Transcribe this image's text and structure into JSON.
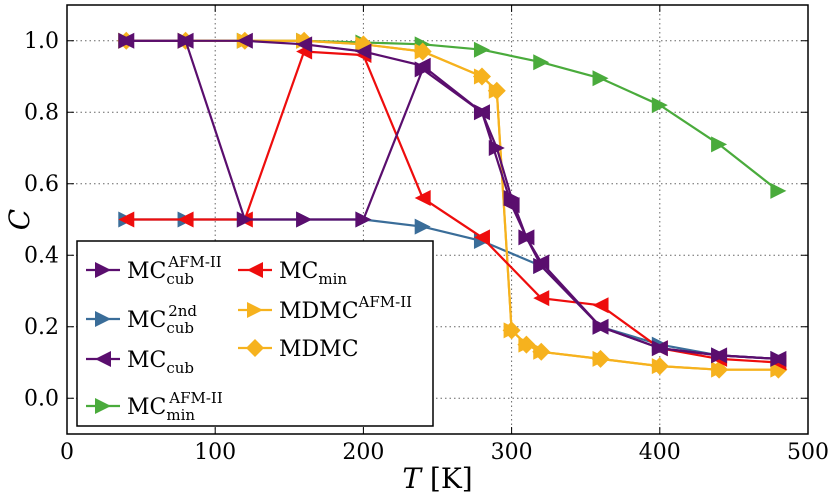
{
  "chart_data": {
    "type": "line",
    "title": "",
    "xlabel": "T [K]",
    "xlabel_var": "T",
    "xlabel_unit": "[K]",
    "ylabel": "C",
    "xlim": [
      0,
      500
    ],
    "ylim": [
      -0.1,
      1.1
    ],
    "xticks": [
      0,
      100,
      200,
      300,
      400,
      500
    ],
    "yticks": [
      0.0,
      0.2,
      0.4,
      0.6,
      0.8,
      1.0
    ],
    "xtick_labels": [
      "0",
      "100",
      "200",
      "300",
      "400",
      "500"
    ],
    "ytick_labels": [
      "0.0",
      "0.2",
      "0.4",
      "0.6",
      "0.8",
      "1.0"
    ],
    "grid": true,
    "legend_position": "bottom-left",
    "series": [
      {
        "name": "MC_cub^AFM-II",
        "base": "MC",
        "sub": "cub",
        "sup": "AFM-II",
        "color": "#5a0e6e",
        "marker": "triangle-right",
        "x": [
          40,
          80,
          120,
          160,
          200,
          240,
          280,
          290,
          300,
          310,
          320,
          360,
          400,
          440,
          480
        ],
        "y": [
          1.0,
          1.0,
          0.5,
          0.5,
          0.5,
          0.92,
          0.8,
          0.7,
          0.56,
          0.45,
          0.37,
          0.2,
          0.14,
          0.12,
          0.11
        ]
      },
      {
        "name": "MC_cub^2nd",
        "base": "MC",
        "sub": "cub",
        "sup": "2nd",
        "color": "#3a6d99",
        "marker": "triangle-right",
        "x": [
          40,
          80,
          120,
          160,
          200,
          240,
          280,
          320,
          360,
          400,
          440,
          480
        ],
        "y": [
          0.5,
          0.5,
          0.5,
          0.5,
          0.5,
          0.48,
          0.44,
          0.37,
          0.2,
          0.15,
          0.12,
          0.11
        ]
      },
      {
        "name": "MC_cub",
        "base": "MC",
        "sub": "cub",
        "sup": "",
        "color": "#5a0e6e",
        "marker": "triangle-left",
        "x": [
          40,
          80,
          120,
          160,
          200,
          240,
          280,
          300,
          310,
          320,
          360,
          400,
          440,
          480
        ],
        "y": [
          1.0,
          1.0,
          1.0,
          0.99,
          0.97,
          0.93,
          0.8,
          0.54,
          0.45,
          0.38,
          0.2,
          0.14,
          0.12,
          0.11
        ]
      },
      {
        "name": "MC_min^AFM-II",
        "base": "MC",
        "sub": "min",
        "sup": "AFM-II",
        "color": "#4aab3c",
        "marker": "triangle-right",
        "x": [
          40,
          80,
          120,
          160,
          200,
          240,
          280,
          320,
          360,
          400,
          440,
          480
        ],
        "y": [
          1.0,
          1.0,
          1.0,
          1.0,
          0.995,
          0.99,
          0.975,
          0.94,
          0.895,
          0.82,
          0.71,
          0.58
        ]
      },
      {
        "name": "MC_min",
        "base": "MC",
        "sub": "min",
        "sup": "",
        "color": "#ee0d0d",
        "marker": "triangle-left",
        "x": [
          40,
          80,
          120,
          160,
          200,
          240,
          280,
          320,
          360,
          400,
          440,
          480
        ],
        "y": [
          0.5,
          0.5,
          0.5,
          0.97,
          0.96,
          0.56,
          0.45,
          0.28,
          0.26,
          0.14,
          0.11,
          0.1
        ]
      },
      {
        "name": "MDMC^AFM-II",
        "base": "MDMC",
        "sub": "",
        "sup": "AFM-II",
        "color": "#f6b21e",
        "marker": "triangle-right",
        "x": [
          40,
          80,
          120,
          160,
          200,
          240,
          280,
          290,
          300,
          310,
          320,
          360,
          400,
          440,
          480
        ],
        "y": [
          1.0,
          1.0,
          1.0,
          1.0,
          0.99,
          0.97,
          0.9,
          0.86,
          0.19,
          0.15,
          0.13,
          0.11,
          0.09,
          0.08,
          0.08
        ]
      },
      {
        "name": "MDMC",
        "base": "MDMC",
        "sub": "",
        "sup": "",
        "color": "#f6b21e",
        "marker": "diamond",
        "x": [
          40,
          80,
          120,
          160,
          200,
          240,
          280,
          290,
          300,
          310,
          320,
          360,
          400,
          440,
          480
        ],
        "y": [
          1.0,
          1.0,
          1.0,
          1.0,
          0.99,
          0.97,
          0.9,
          0.86,
          0.19,
          0.15,
          0.13,
          0.11,
          0.09,
          0.08,
          0.08
        ]
      }
    ]
  }
}
